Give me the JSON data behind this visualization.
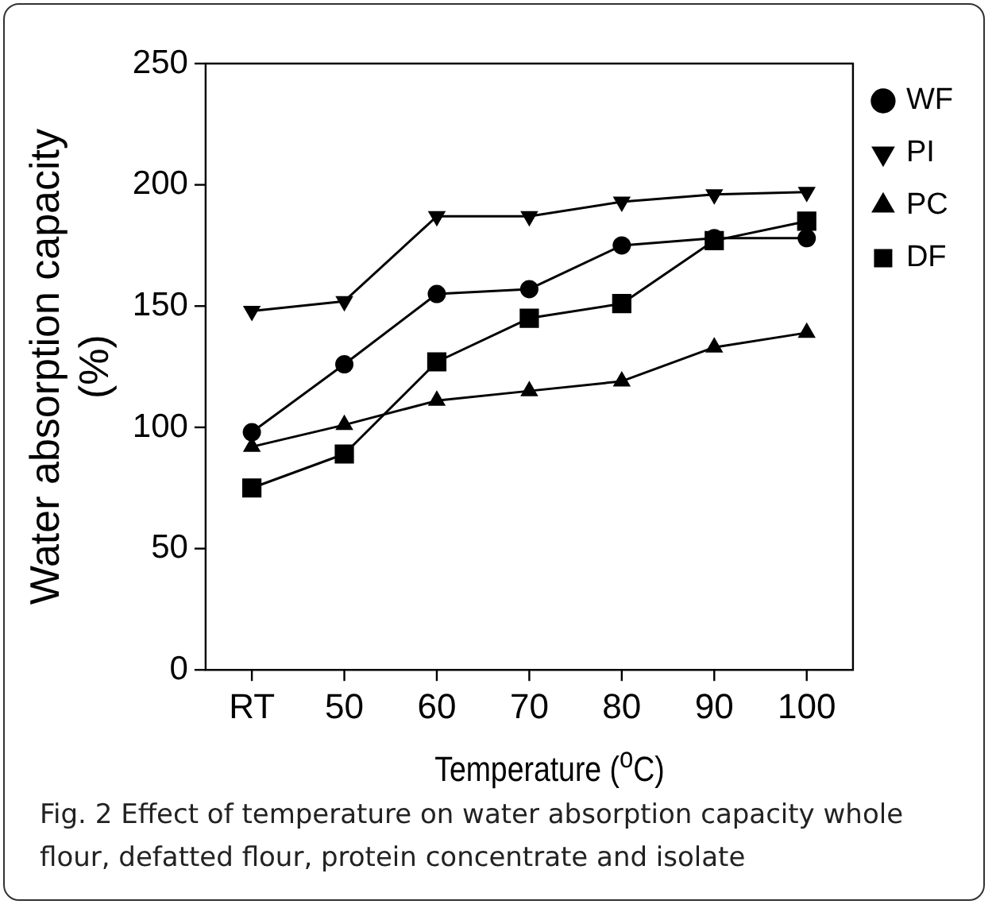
{
  "chart_data": {
    "type": "line",
    "xlabel": "Temperature ($^{o}$C)",
    "ylabel": "Water absorption capacity\n(%)",
    "categories": [
      "RT",
      "50",
      "60",
      "70",
      "80",
      "90",
      "100"
    ],
    "series": [
      {
        "name": "WF",
        "color": "#000000",
        "marker": "circle",
        "values": [
          98,
          126,
          155,
          157,
          175,
          178,
          178
        ]
      },
      {
        "name": "PI",
        "color": "#000000",
        "marker": "triangle-down",
        "values": [
          148,
          152,
          187,
          187,
          193,
          196,
          197
        ]
      },
      {
        "name": "PC",
        "color": "#000000",
        "marker": "triangle",
        "values": [
          92,
          101,
          111,
          115,
          119,
          133,
          139
        ]
      },
      {
        "name": "DF",
        "color": "#000000",
        "marker": "square",
        "values": [
          75,
          89,
          127,
          145,
          151,
          177,
          185
        ]
      }
    ],
    "ylim": [
      0,
      250
    ],
    "yticks": [
      0,
      50,
      100,
      150,
      200,
      250
    ],
    "grid": false,
    "legend": "right",
    "line_style": "solid",
    "annotations": [
      "Fig. 2 Effect of temperature on water absorption capacity whole flour, defatted flour, protein concentrate and isolate"
    ]
  }
}
